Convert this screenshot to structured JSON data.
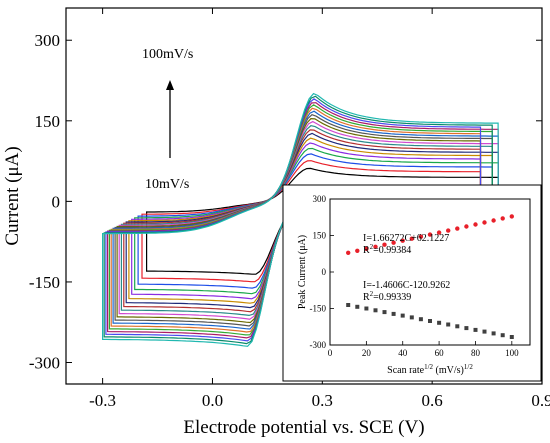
{
  "chart_data": [
    {
      "type": "line",
      "xlabel": "Electrode potential vs. SCE (V)",
      "ylabel": "Current (μA)",
      "xlim": [
        -0.4,
        0.9
      ],
      "ylim": [
        -340,
        360
      ],
      "x_ticks": [
        "-0.3",
        "0.0",
        "0.3",
        "0.6",
        "0.9"
      ],
      "x_tick_values": [
        -0.3,
        0.0,
        0.3,
        0.6,
        0.9
      ],
      "y_ticks": [
        "300",
        "150",
        "0",
        "-150",
        "-300"
      ],
      "y_tick_values": [
        300,
        150,
        0,
        -150,
        -300
      ],
      "annotations": [
        {
          "text": "100mV/s"
        },
        {
          "text": "10mV/s"
        }
      ],
      "scan_rates_mV_s": [
        10,
        15,
        20,
        25,
        30,
        35,
        40,
        45,
        50,
        55,
        60,
        65,
        70,
        75,
        80,
        85,
        90,
        95,
        100
      ],
      "series_colors": [
        "#000000",
        "#e8202a",
        "#1f4ee8",
        "#1aa84a",
        "#8a2be2",
        "#c88a00",
        "#1f2a7a",
        "#b33030",
        "#2a8a8a",
        "#d04ad0",
        "#6a6a00",
        "#555555",
        "#1a66cc",
        "#e0702a",
        "#33aa33",
        "#aa1a66",
        "#4a4aee",
        "#0a8a6a",
        "#20b8b0"
      ],
      "cv_model": {
        "anodic_peak_uA_at_10": 62,
        "anodic_peak_uA_at_100": 202,
        "cathodic_peak_uA_at_10": -136,
        "cathodic_peak_uA_at_100": -270,
        "anodic_peak_potential_V": 0.28,
        "cathodic_peak_potential_V": 0.1
      },
      "grid": false
    },
    {
      "type": "scatter",
      "xlabel_parts": [
        "Scan rate",
        "1/2",
        " (mV/s)",
        "1/2"
      ],
      "ylabel": "Peak Current (μA)",
      "xlim": [
        0,
        110
      ],
      "ylim": [
        -300,
        300
      ],
      "x_ticks": [
        "0",
        "20",
        "40",
        "60",
        "80",
        "100"
      ],
      "x_tick_values": [
        0,
        20,
        40,
        60,
        80,
        100
      ],
      "y_ticks": [
        "300",
        "150",
        "0",
        "-150",
        "-300"
      ],
      "y_tick_values": [
        300,
        150,
        0,
        -150,
        -300
      ],
      "anodic": {
        "equation": "I=1.66272C+62.1227",
        "r2_label": "R",
        "r2_sup": "2",
        "r2_value": "=0.99384",
        "slope": 1.66272,
        "intercept": 62.1227,
        "color": "#e8202a"
      },
      "cathodic": {
        "equation": "I=-1.4606C-120.9262",
        "r2_label": "R",
        "r2_sup": "2",
        "r2_value": "=0.99339",
        "slope": -1.4606,
        "intercept": -120.9262,
        "color": "#404040"
      },
      "x_values": [
        10,
        15,
        20,
        25,
        30,
        35,
        40,
        45,
        50,
        55,
        60,
        65,
        70,
        75,
        80,
        85,
        90,
        95,
        100
      ]
    }
  ]
}
